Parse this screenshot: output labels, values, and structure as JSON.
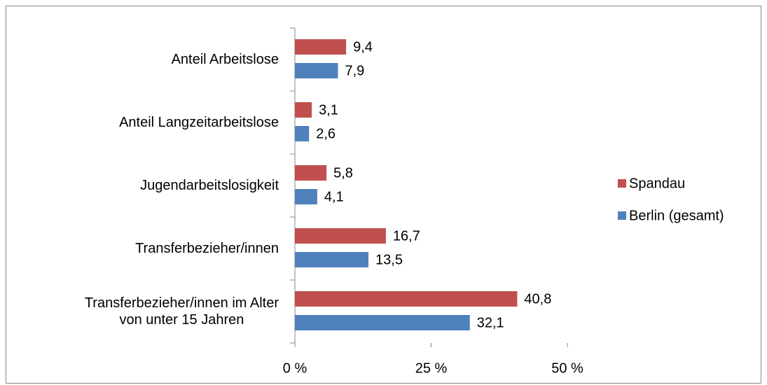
{
  "chart_data": {
    "type": "barh",
    "categories": [
      "Anteil Arbeitslose",
      "Anteil Langzeitarbeitslose",
      "Jugendarbeitslosigkeit",
      "Transferbezieher/innen",
      "Transferbezieher/innen im Alter\nvon unter 15 Jahren"
    ],
    "series": [
      {
        "name": "Spandau",
        "color": "#c0504d",
        "values": [
          9.4,
          3.1,
          5.8,
          16.7,
          40.8
        ],
        "value_labels": [
          "9,4",
          "3,1",
          "5,8",
          "16,7",
          "40,8"
        ]
      },
      {
        "name": "Berlin (gesamt)",
        "color": "#4f81bd",
        "values": [
          7.9,
          2.6,
          4.1,
          13.5,
          32.1
        ],
        "value_labels": [
          "7,9",
          "2,6",
          "4,1",
          "13,5",
          "32,1"
        ]
      }
    ],
    "xlim": [
      0,
      50
    ],
    "xticks": [
      {
        "value": 0,
        "label": "0 %"
      },
      {
        "value": 25,
        "label": "25 %"
      },
      {
        "value": 50,
        "label": "50 %"
      }
    ],
    "legend": "right"
  }
}
